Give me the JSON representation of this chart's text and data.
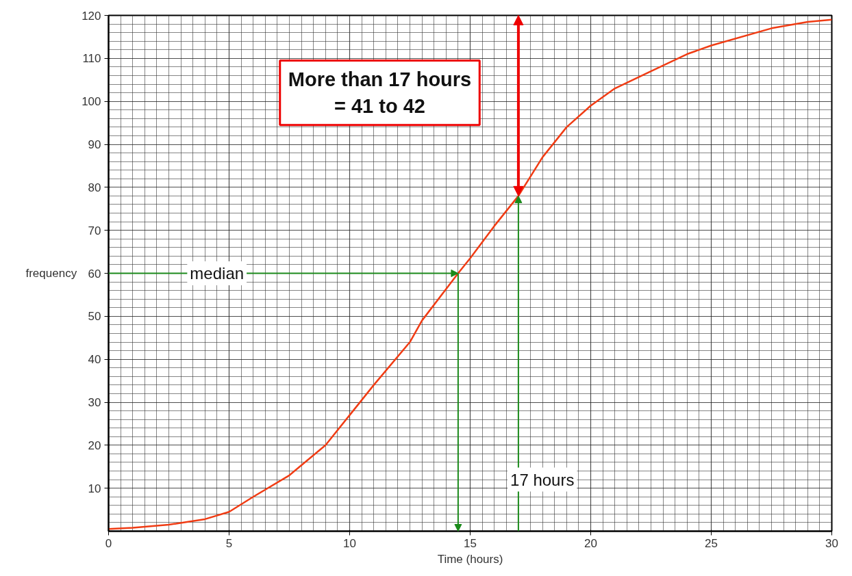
{
  "chart_data": {
    "type": "line",
    "xlabel": "Time (hours)",
    "ylabel": "frequency",
    "x": [
      0,
      1,
      2.5,
      4,
      5,
      6,
      7.5,
      9,
      10,
      11,
      12.5,
      13,
      14.5,
      15,
      16,
      17,
      18,
      19,
      20,
      21,
      22.5,
      24,
      25,
      27.5,
      29,
      30
    ],
    "series": [
      {
        "color": "#f03c14",
        "values": [
          0.5,
          0.8,
          1.5,
          2.8,
          4.5,
          8,
          13,
          20,
          27,
          34,
          44,
          49,
          60,
          63.5,
          71,
          78,
          87,
          94,
          99,
          103,
          107,
          111,
          113,
          117,
          118.5,
          119
        ]
      }
    ],
    "xlim": [
      0,
      30
    ],
    "ylim": [
      0,
      120
    ],
    "xticks": [
      0,
      5,
      10,
      15,
      20,
      25,
      30
    ],
    "yticks": [
      10,
      20,
      30,
      40,
      50,
      60,
      70,
      80,
      90,
      100,
      110,
      120
    ],
    "grid": true,
    "marker": "none",
    "line_style": "solid",
    "ref_lines": [
      {
        "axis": "y",
        "value": 60,
        "label": "median",
        "color": "#1a8a1a"
      },
      {
        "axis": "x",
        "value": 17,
        "label": "17 hours",
        "color": "#1a8a1a"
      }
    ],
    "annotations": [
      "More than 17 hours\n= 41 to 42"
    ]
  }
}
